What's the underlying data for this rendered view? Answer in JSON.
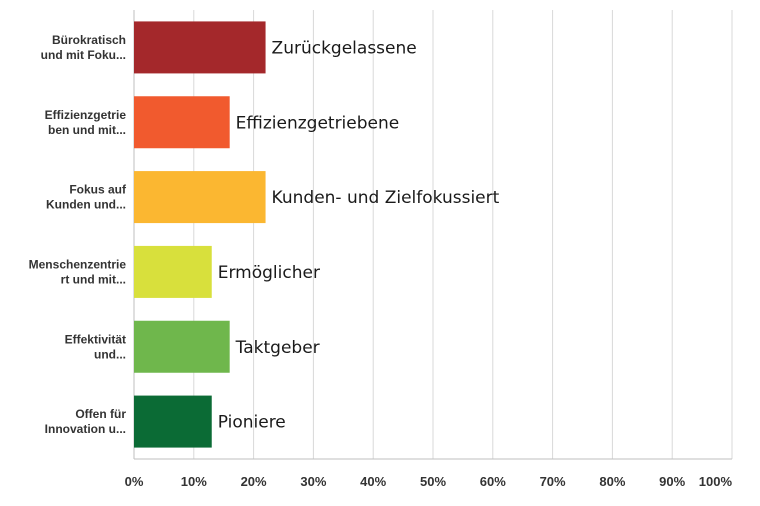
{
  "chart_data": {
    "type": "bar",
    "orientation": "horizontal",
    "categories": [
      [
        "Bürokratisch",
        "und mit Foku..."
      ],
      [
        "Effizienzgetrie",
        "ben und mit..."
      ],
      [
        "Fokus auf",
        "Kunden und..."
      ],
      [
        "Menschenzentrie",
        "rt und mit..."
      ],
      [
        "Effektivität",
        "und..."
      ],
      [
        "Offen für",
        "Innovation u..."
      ]
    ],
    "values": [
      22,
      16,
      22,
      13,
      16,
      13
    ],
    "data_labels": [
      "Zurückgelassene",
      "Effizienzgetriebene",
      "Kunden- und Zielfokussiert",
      "Ermöglicher",
      "Taktgeber",
      "Pioniere"
    ],
    "colors": [
      "#a4282b",
      "#f15a2e",
      "#fbb731",
      "#d8e03c",
      "#6fb74c",
      "#0b6b35"
    ],
    "xlim": [
      0,
      100
    ],
    "x_ticks": [
      "0%",
      "10%",
      "20%",
      "30%",
      "40%",
      "50%",
      "60%",
      "70%",
      "80%",
      "90%",
      "100%"
    ],
    "grid": true
  }
}
